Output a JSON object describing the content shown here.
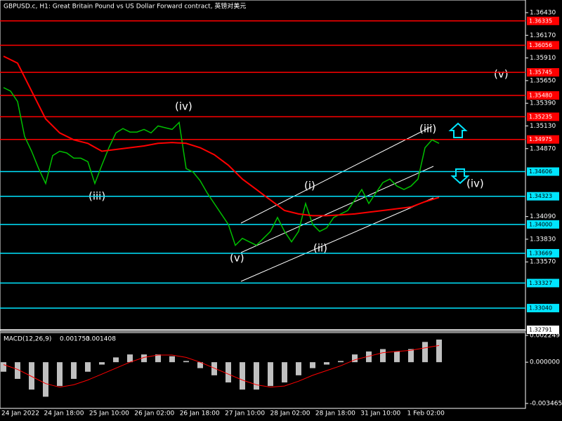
{
  "chart_data": {
    "type": "line",
    "title": "GBPUSD.c, H1:  Great Britain Pound vs US Dollar Forward contract, 英镑对美元",
    "ylim": [
      1.32791,
      1.3643
    ],
    "yticks": [
      {
        "value": 1.3643,
        "label": "1.36430"
      },
      {
        "value": 1.3617,
        "label": "1.36170"
      },
      {
        "value": 1.3591,
        "label": "1.35910"
      },
      {
        "value": 1.3565,
        "label": "1.35650"
      },
      {
        "value": 1.3539,
        "label": "1.35390"
      },
      {
        "value": 1.3513,
        "label": "1.35130"
      },
      {
        "value": 1.3487,
        "label": "1.34870"
      },
      {
        "value": 1.3409,
        "label": "1.34090"
      },
      {
        "value": 1.3383,
        "label": "1.33830"
      },
      {
        "value": 1.3357,
        "label": "1.33570"
      }
    ],
    "x_labels": [
      "24 Jan 2022",
      "24 Jan 18:00",
      "25 Jan 10:00",
      "26 Jan 02:00",
      "26 Jan 18:00",
      "27 Jan 10:00",
      "28 Jan 02:00",
      "28 Jan 18:00",
      "31 Jan 10:00",
      "1 Feb 02:00"
    ],
    "series": [
      {
        "color": "#00c000",
        "values": [
          1.3557,
          1.3553,
          1.3541,
          1.3501,
          1.3484,
          1.3464,
          1.3447,
          1.3479,
          1.3484,
          1.3482,
          1.3476,
          1.3476,
          1.3472,
          1.3447,
          1.3468,
          1.3488,
          1.3505,
          1.351,
          1.3506,
          1.3506,
          1.3509,
          1.3505,
          1.3513,
          1.3511,
          1.3509,
          1.3517,
          1.3464,
          1.346,
          1.345,
          1.3436,
          1.3424,
          1.3412,
          1.34,
          1.3376,
          1.3384,
          1.338,
          1.3376,
          1.3384,
          1.3392,
          1.3408,
          1.3392,
          1.338,
          1.3392,
          1.3424,
          1.34,
          1.3392,
          1.3396,
          1.3408,
          1.3412,
          1.3416,
          1.3428,
          1.344,
          1.3424,
          1.3436,
          1.3448,
          1.3452,
          1.3444,
          1.344,
          1.3444,
          1.3452,
          1.3488,
          1.3497,
          1.3493
        ]
      },
      {
        "color": "#ff0000",
        "values": [
          1.3593,
          1.3585,
          1.3553,
          1.3521,
          1.3505,
          1.3497,
          1.3493,
          1.3484,
          1.3486,
          1.3488,
          1.349,
          1.3493,
          1.3494,
          1.3493,
          1.3488,
          1.348,
          1.3468,
          1.3452,
          1.344,
          1.3428,
          1.3416,
          1.3412,
          1.341,
          1.341,
          1.3411,
          1.3412,
          1.3414,
          1.3416,
          1.3418,
          1.342,
          1.3426,
          1.3431
        ]
      }
    ],
    "levels": [
      {
        "value": 1.36335,
        "color": "#ff0000"
      },
      {
        "value": 1.36056,
        "color": "#ff0000"
      },
      {
        "value": 1.35745,
        "color": "#ff0000"
      },
      {
        "value": {
          "value": 1.3548,
          "label": "1.35480"
        },
        "color": "#ff0000"
      },
      {
        "value": 1.35235,
        "color": "#ff0000"
      },
      {
        "value": 1.34975,
        "color": "#ff0000"
      },
      {
        "value": 1.34606,
        "color": "#00e5ff"
      },
      {
        "value": 1.34323,
        "color": "#00e5ff"
      },
      {
        "value": {
          "value": 1.34,
          "label": "1.34000"
        },
        "color": "#00e5ff"
      },
      {
        "value": 1.33669,
        "color": "#00e5ff"
      },
      {
        "value": 1.33327,
        "color": "#00e5ff"
      },
      {
        "value": {
          "value": 1.3304,
          "label": "1.33040"
        },
        "color": "#00e5ff"
      },
      {
        "value": 1.32791,
        "color": "#ffffff"
      }
    ],
    "waves": [
      "(iv)",
      "(iii)",
      "(v)",
      "(i)",
      "(ii)",
      "(iii)",
      "(iv)",
      "(v)"
    ],
    "macd": {
      "label": "MACD(12,26,9)",
      "current": 0.001753,
      "signal_current": 0.001408,
      "ylim": [
        -0.003465,
        0.002249
      ],
      "yticks": [
        0.002249,
        {
          "value": 0,
          "label": "0.000000"
        },
        -0.003465
      ],
      "histogram": {
        "color": "#c0c0c0",
        "values": [
          -0.0008,
          -0.0014,
          -0.0023,
          -0.0029,
          -0.002,
          -0.0014,
          -0.0008,
          -0.0002,
          0.0004,
          0.00065,
          0.00065,
          0.00065,
          0.0005,
          0.0001,
          -0.0005,
          -0.0011,
          -0.0017,
          -0.0023,
          -0.0023,
          -0.002,
          -0.0017,
          -0.0011,
          -0.0005,
          -0.0002,
          0.0001,
          0.00065,
          0.0009,
          0.0011,
          0.0009,
          0.0011,
          0.0017,
          0.0019
        ]
      },
      "signal": {
        "color": "#ff0000",
        "values": [
          -0.0002,
          -0.0006,
          -0.0012,
          -0.0018,
          -0.0021,
          -0.0019,
          -0.0015,
          -0.001,
          -0.0005,
          0,
          0.0004,
          0.0006,
          0.0006,
          0.0004,
          0,
          -0.0005,
          -0.001,
          -0.0015,
          -0.0019,
          -0.0021,
          -0.002,
          -0.0016,
          -0.0011,
          -0.0007,
          -0.0003,
          0.0002,
          0.0005,
          0.0008,
          0.0009,
          0.001,
          0.0012,
          0.0014
        ]
      }
    }
  }
}
